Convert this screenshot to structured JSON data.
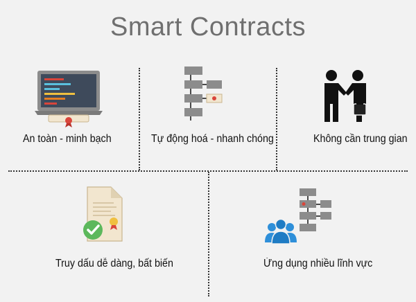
{
  "title": "Smart Contracts",
  "features": [
    {
      "label": "An toàn - minh bạch",
      "icon": "laptop-code-certificate-icon"
    },
    {
      "label": "Tự động hoá - nhanh chóng",
      "icon": "flowchart-icon"
    },
    {
      "label": "Không cần trung gian",
      "icon": "handshake-icon"
    },
    {
      "label": "Truy dấu dễ dàng, bất biến",
      "icon": "verified-document-icon"
    },
    {
      "label": "Ứng dụng nhiều lĩnh vực",
      "icon": "users-flowchart-icon"
    }
  ],
  "colors": {
    "background": "#f2f2f2",
    "title": "#6f6f6f",
    "icon_gray": "#8c8c8c",
    "icon_dark": "#4a4a4a",
    "accent_red": "#d9453b",
    "check_green": "#5cb85c",
    "people_blue": "#2e8fd9",
    "laptop_screen": "#3e4a5b"
  }
}
